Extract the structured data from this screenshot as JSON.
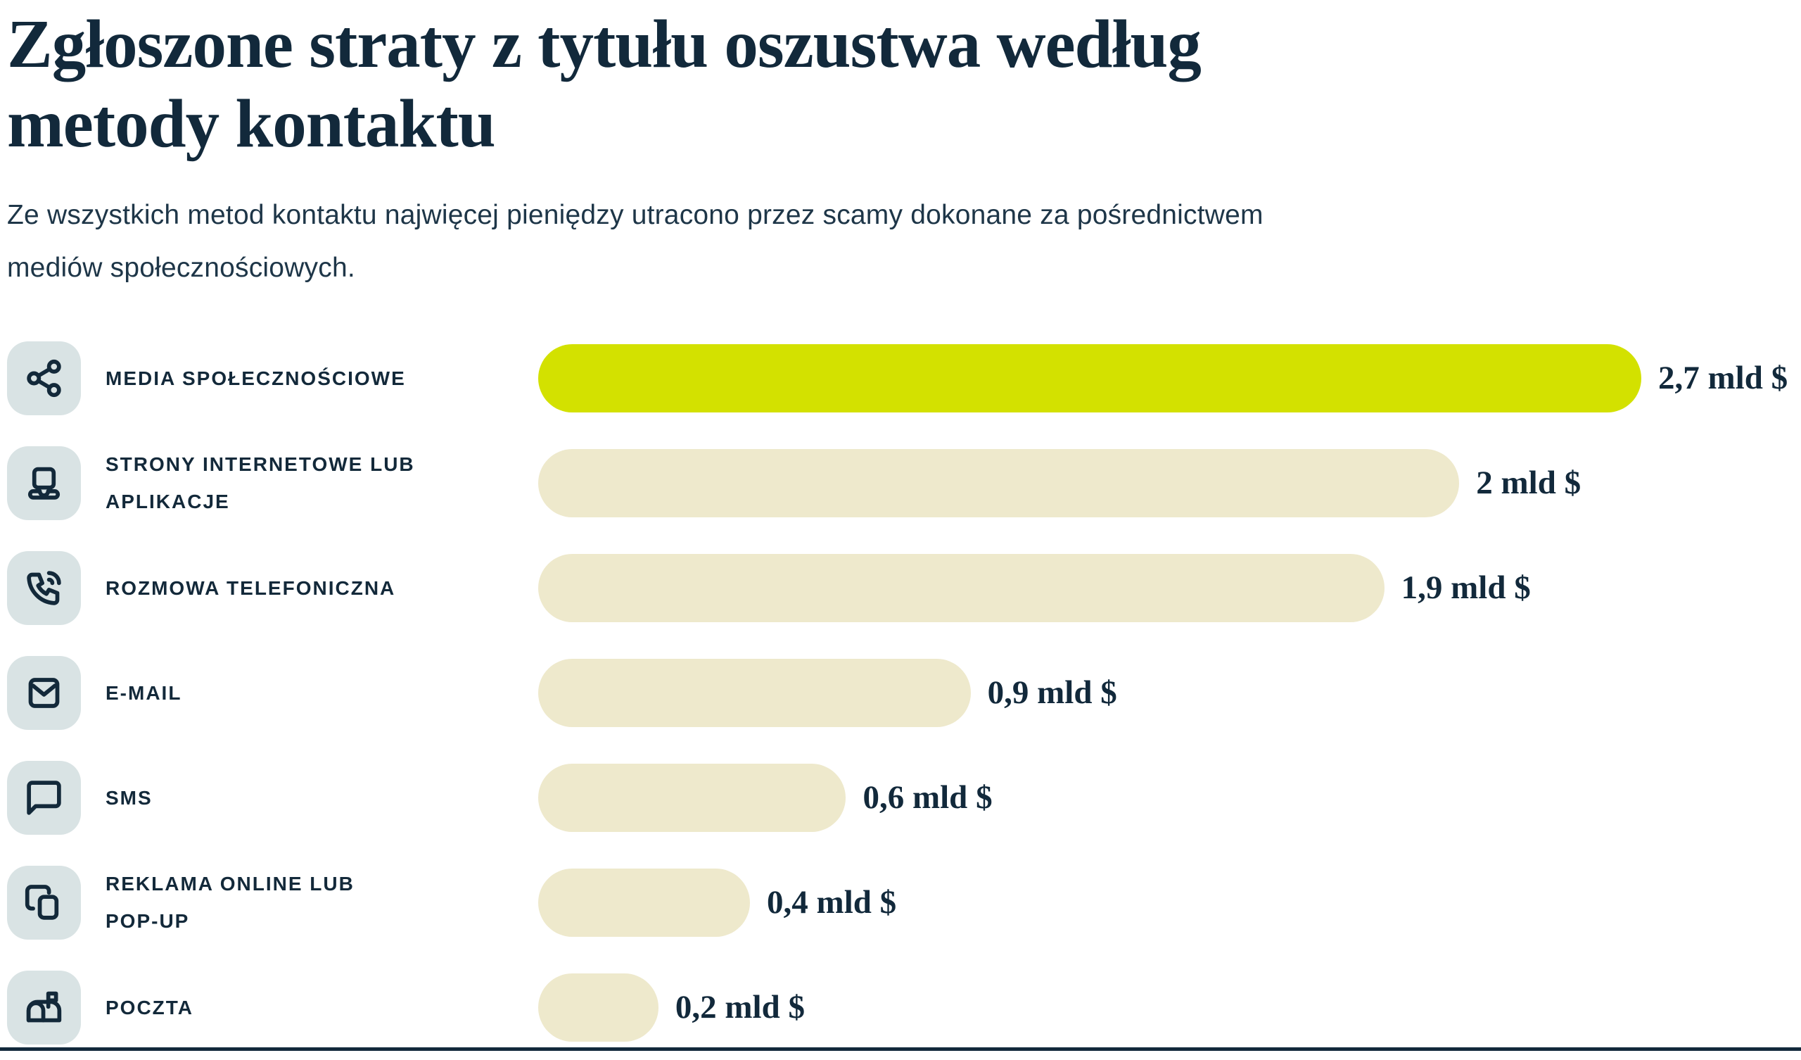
{
  "header": {
    "title": "Zgłoszone straty z tytułu oszustwa według metody kontaktu",
    "title_lines": [
      "Zgłoszone straty z tytułu oszustwa według",
      "metody kontaktu"
    ],
    "subtitle": "Ze wszystkich metod kontaktu najwięcej pieniędzy utracono przez scamy dokonane za pośrednictwem mediów społecznościowych.",
    "subtitle_lines": [
      "Ze wszystkich metod kontaktu najwięcej pieniędzy utracono przez scamy dokonane za pośrednictwem",
      "mediów społecznościowych."
    ]
  },
  "colors": {
    "highlight_bar": "#d3e100",
    "default_bar": "#eee9cc",
    "icon_chip_background": "#d9e3e4",
    "text_navy": "#12293b"
  },
  "chart_data": {
    "type": "bar",
    "orientation": "horizontal",
    "unit": "mld $",
    "value_axis_max": 2.7,
    "grid": false,
    "legend": false,
    "highlighted_category": "MEDIA SPOŁECZNOŚCIOWE",
    "rows": [
      {
        "label": "MEDIA SPOŁECZNOŚCIOWE",
        "label_lines": [
          "MEDIA SPOŁECZNOŚCIOWE"
        ],
        "icon": "share-icon",
        "value": 2.7,
        "value_label": "2,7 mld $",
        "highlighted": true,
        "bar_fraction": 1.0
      },
      {
        "label": "STRONY INTERNETOWE LUB APLIKACJE",
        "label_lines": [
          "STRONY INTERNETOWE LUB",
          "APLIKACJE"
        ],
        "icon": "laptop-icon",
        "value": 2.0,
        "value_label": "2 mld $",
        "highlighted": false,
        "bar_fraction": 0.835
      },
      {
        "label": "ROZMOWA TELEFONICZNA",
        "label_lines": [
          "ROZMOWA TELEFONICZNA"
        ],
        "icon": "phone-call-icon",
        "value": 1.9,
        "value_label": "1,9 mld $",
        "highlighted": false,
        "bar_fraction": 0.767
      },
      {
        "label": "E-MAIL",
        "label_lines": [
          "E-MAIL"
        ],
        "icon": "mail-icon",
        "value": 0.9,
        "value_label": "0,9 mld $",
        "highlighted": false,
        "bar_fraction": 0.392
      },
      {
        "label": "SMS",
        "label_lines": [
          "SMS"
        ],
        "icon": "sms-icon",
        "value": 0.6,
        "value_label": "0,6 mld $",
        "highlighted": false,
        "bar_fraction": 0.279
      },
      {
        "label": "REKLAMA ONLINE LUB POP-UP",
        "label_lines": [
          "REKLAMA ONLINE LUB",
          "POP-UP"
        ],
        "icon": "copy-icon",
        "value": 0.4,
        "value_label": "0,4 mld $",
        "highlighted": false,
        "bar_fraction": 0.192
      },
      {
        "label": "POCZTA",
        "label_lines": [
          "POCZTA"
        ],
        "icon": "mailbox-icon",
        "value": 0.2,
        "value_label": "0,2 mld $",
        "highlighted": false,
        "bar_fraction": 0.109
      }
    ]
  }
}
